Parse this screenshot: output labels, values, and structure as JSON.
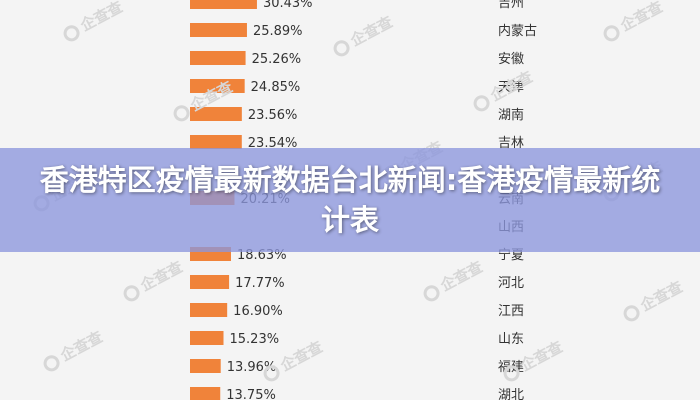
{
  "overlay": {
    "title": "香港特区疫情最新数据台北新闻:香港疫情最新统计表"
  },
  "watermark": {
    "text": "企查查"
  },
  "colors": {
    "bar": "#f0833a",
    "background": "#f4f4f4",
    "overlay": "#8c96dc"
  },
  "chart_data": {
    "type": "bar",
    "orientation": "horizontal",
    "categories": [
      "吉州",
      "内蒙古",
      "安徽",
      "天津",
      "湖南",
      "吉林",
      "",
      "云南",
      "山西",
      "宁夏",
      "河北",
      "江西",
      "山东",
      "福建",
      "湖北"
    ],
    "values": [
      30.43,
      25.89,
      25.26,
      24.85,
      23.56,
      23.54,
      null,
      20.21,
      null,
      18.63,
      17.77,
      16.9,
      15.23,
      13.96,
      13.75
    ],
    "labels": [
      "30.43%",
      "25.89%",
      "25.26%",
      "24.85%",
      "23.56%",
      "23.54%",
      "",
      "20.21%",
      "",
      "18.63%",
      "17.77%",
      "16.90%",
      "15.23%",
      "13.96%",
      "13.75%"
    ],
    "unit": "%",
    "title": "",
    "xlabel": "",
    "ylabel": "",
    "grid": false,
    "legend": "none"
  }
}
